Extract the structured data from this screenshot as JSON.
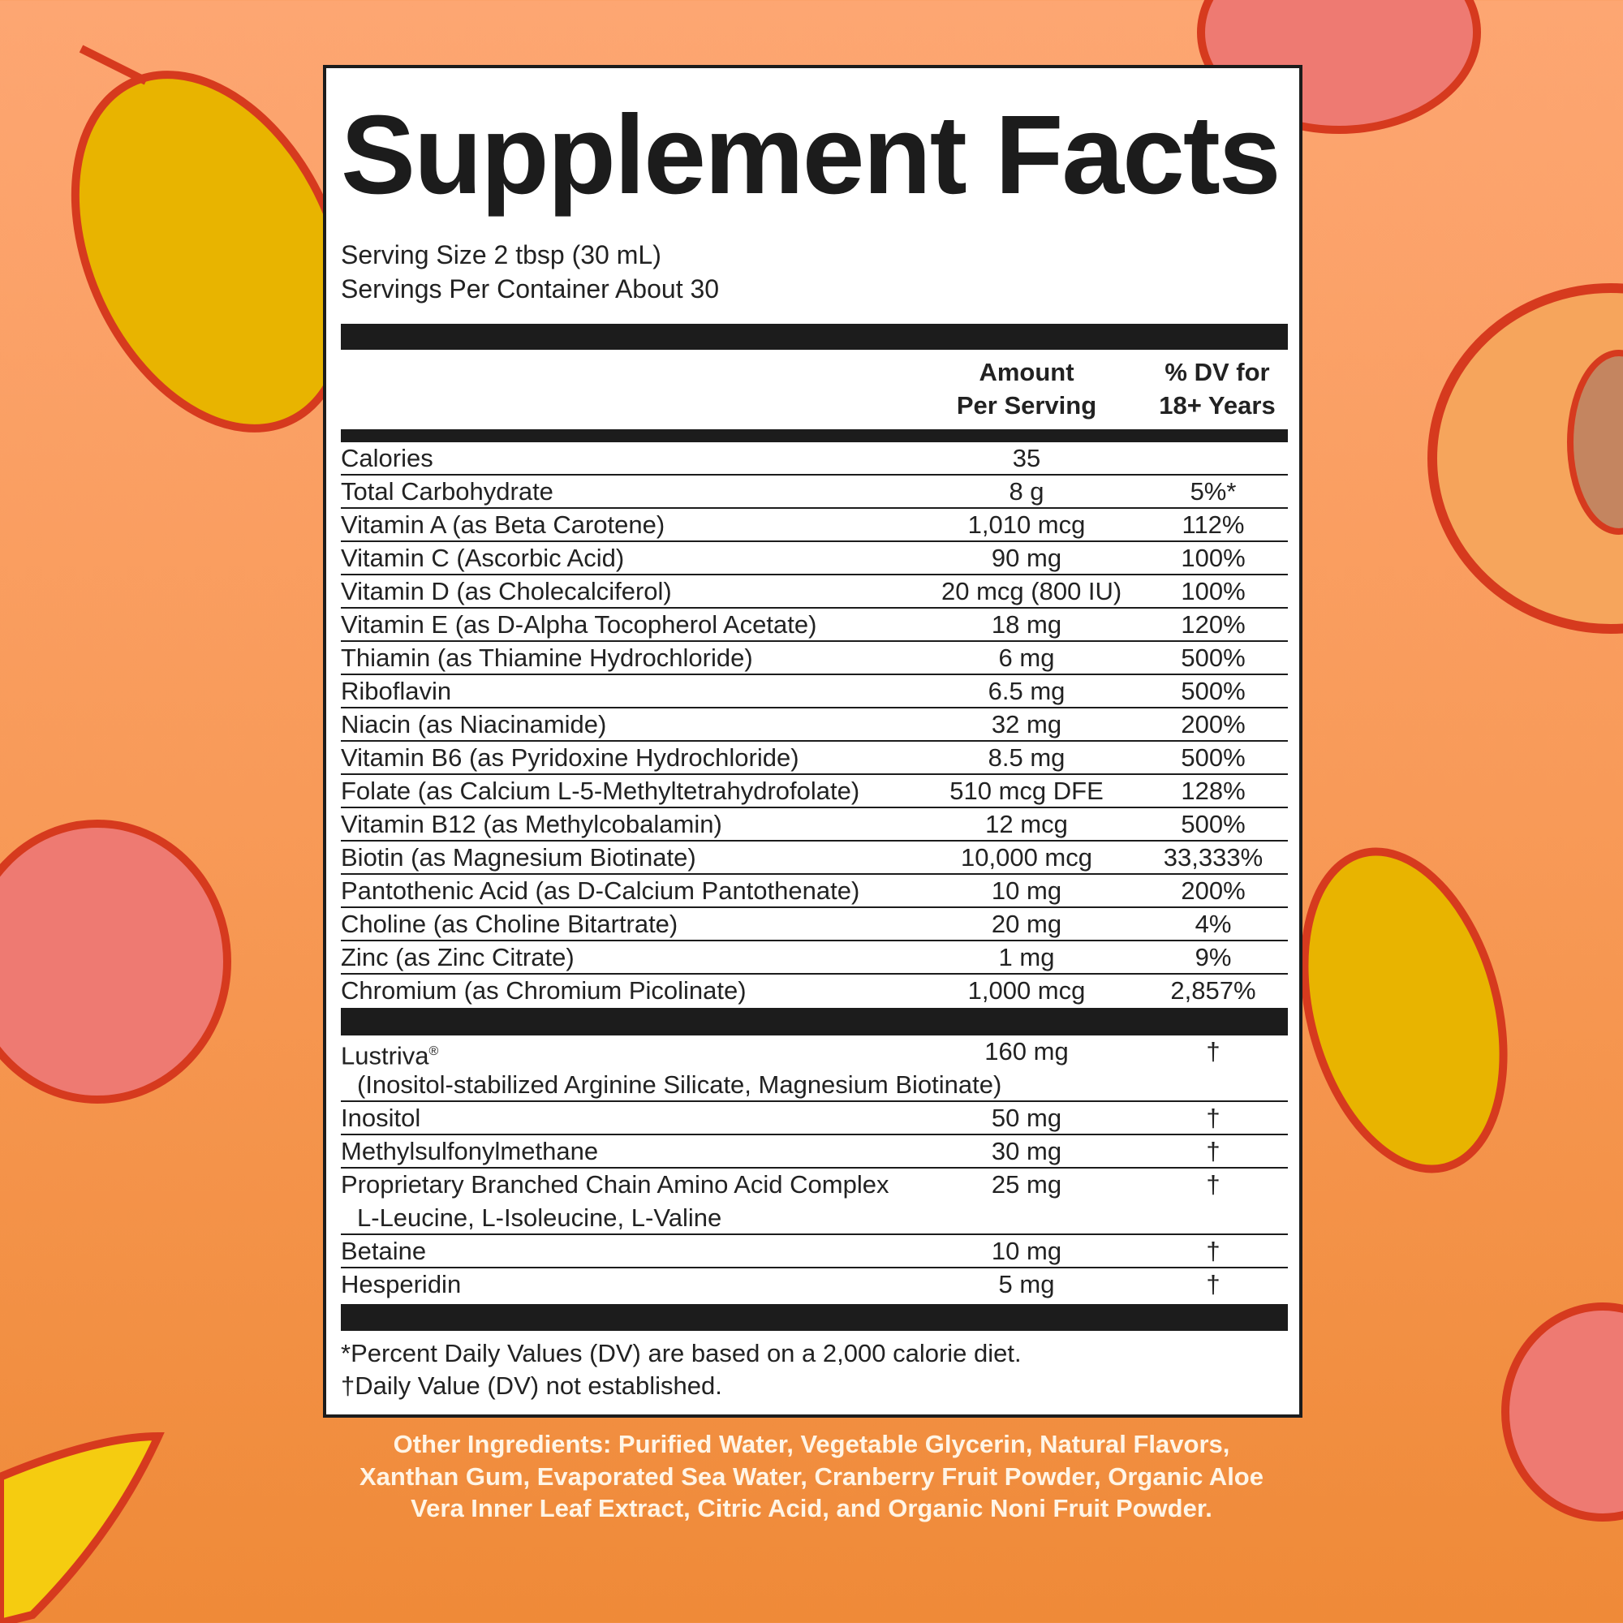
{
  "title": "Supplement Facts",
  "serving_size": "Serving Size 2 tbsp (30 mL)",
  "servings_per_container": "Servings Per Container About 30",
  "header": {
    "amount_line1": "Amount",
    "amount_line2": "Per Serving",
    "dv_line1": "% DV for",
    "dv_line2": "18+ Years"
  },
  "nutrients": [
    {
      "name": "Calories",
      "amount": "35",
      "dv": ""
    },
    {
      "name": "Total Carbohydrate",
      "amount": "8 g",
      "dv": "5%*"
    },
    {
      "name": "Vitamin A (as Beta Carotene)",
      "amount": "1,010 mcg",
      "dv": "112%"
    },
    {
      "name": "Vitamin C (Ascorbic Acid)",
      "amount": "90 mg",
      "dv": "100%"
    },
    {
      "name": "Vitamin D (as Cholecalciferol)",
      "amount": "20 mcg (800 IU)",
      "dv": "100%"
    },
    {
      "name": "Vitamin E (as D-Alpha Tocopherol Acetate)",
      "amount": "18 mg",
      "dv": "120%"
    },
    {
      "name": "Thiamin (as Thiamine Hydrochloride)",
      "amount": "6 mg",
      "dv": "500%"
    },
    {
      "name": "Riboflavin",
      "amount": "6.5 mg",
      "dv": "500%"
    },
    {
      "name": "Niacin (as Niacinamide)",
      "amount": "32 mg",
      "dv": "200%"
    },
    {
      "name": "Vitamin B6 (as Pyridoxine Hydrochloride)",
      "amount": "8.5 mg",
      "dv": "500%"
    },
    {
      "name": "Folate (as Calcium L-5-Methyltetrahydrofolate)",
      "amount": "510 mcg DFE",
      "dv": "128%"
    },
    {
      "name": "Vitamin B12 (as Methylcobalamin)",
      "amount": "12 mcg",
      "dv": "500%"
    },
    {
      "name": "Biotin (as Magnesium Biotinate)",
      "amount": "10,000 mcg",
      "dv": "33,333%"
    },
    {
      "name": "Pantothenic Acid (as D-Calcium Pantothenate)",
      "amount": "10 mg",
      "dv": "200%"
    },
    {
      "name": "Choline (as Choline Bitartrate)",
      "amount": "20 mg",
      "dv": "4%"
    },
    {
      "name": "Zinc (as Zinc Citrate)",
      "amount": "1 mg",
      "dv": "9%"
    },
    {
      "name": "Chromium (as Chromium Picolinate)",
      "amount": "1,000 mcg",
      "dv": "2,857%"
    }
  ],
  "other_nutrients": [
    {
      "name": "Lustriva",
      "mark": "®",
      "sub": "(Inositol-stabilized Arginine Silicate, Magnesium Biotinate)",
      "amount": "160 mg",
      "dv": "†"
    },
    {
      "name": "Inositol",
      "amount": "50 mg",
      "dv": "†"
    },
    {
      "name": "Methylsulfonylmethane",
      "amount": "30 mg",
      "dv": "†"
    },
    {
      "name": "Proprietary Branched Chain Amino Acid Complex",
      "sub": "L-Leucine, L-Isoleucine, L-Valine",
      "amount": "25 mg",
      "dv": "†"
    },
    {
      "name": "Betaine",
      "amount": "10 mg",
      "dv": "†"
    },
    {
      "name": "Hesperidin",
      "amount": "5 mg",
      "dv": "†"
    }
  ],
  "footnotes": [
    "*Percent Daily Values (DV) are based on a 2,000 calorie diet.",
    "†Daily Value (DV) not established."
  ],
  "other_ingredients": "Other Ingredients: Purified Water, Vegetable Glycerin, Natural Flavors, Xanthan Gum, Evaporated Sea Water, Cranberry Fruit Powder, Organic Aloe Vera Inner Leaf Extract, Citric Acid, and Organic Noni Fruit Powder.",
  "colors": {
    "background_top": "#fda672",
    "background_bottom": "#ef8a38",
    "label_ink": "#1c1c1c",
    "mango": "#e8b400",
    "peach": "#ee7a72",
    "outline": "#d63a1e"
  }
}
